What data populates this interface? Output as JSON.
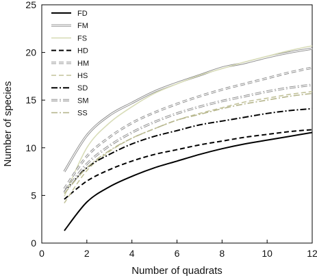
{
  "chart_data": {
    "type": "line",
    "title": "",
    "xlabel": "Number of quadrats",
    "ylabel": "Number of species",
    "xlim": [
      0,
      12
    ],
    "ylim": [
      0,
      25
    ],
    "xticks": [
      0,
      2,
      4,
      6,
      8,
      10,
      12
    ],
    "yticks": [
      0,
      5,
      10,
      15,
      20,
      25
    ],
    "grid": false,
    "legend_position": "top-left",
    "x": [
      1,
      2,
      3,
      4,
      5,
      6,
      7,
      8,
      9,
      10,
      11,
      12
    ],
    "series": [
      {
        "name": "FD",
        "values": [
          1.3,
          4.3,
          5.9,
          7.0,
          7.9,
          8.6,
          9.3,
          9.9,
          10.4,
          10.8,
          11.2,
          11.6
        ],
        "color": "#000000",
        "style": "solid"
      },
      {
        "name": "FM",
        "values": [
          7.5,
          11.3,
          13.4,
          14.7,
          15.9,
          16.8,
          17.6,
          18.4,
          18.9,
          19.5,
          20.0,
          20.4
        ],
        "color": "#8a8a8a",
        "style": "double"
      },
      {
        "name": "FS",
        "values": [
          4.9,
          10.0,
          12.6,
          14.3,
          15.7,
          16.7,
          17.6,
          18.3,
          19.0,
          19.6,
          20.2,
          20.7
        ],
        "color": "#d8dcb8",
        "style": "solid"
      },
      {
        "name": "HD",
        "values": [
          4.6,
          6.5,
          7.7,
          8.6,
          9.3,
          9.8,
          10.3,
          10.7,
          11.1,
          11.4,
          11.7,
          11.9
        ],
        "color": "#000000",
        "style": "dashed"
      },
      {
        "name": "HM",
        "values": [
          5.7,
          9.1,
          11.1,
          12.6,
          13.7,
          14.6,
          15.4,
          16.1,
          16.7,
          17.3,
          17.9,
          18.4
        ],
        "color": "#8a8a8a",
        "style": "double-dashed"
      },
      {
        "name": "HS",
        "values": [
          4.2,
          7.6,
          9.6,
          11.0,
          12.0,
          12.9,
          13.6,
          14.2,
          14.8,
          15.2,
          15.6,
          15.9
        ],
        "color": "#c2c29a",
        "style": "dashed"
      },
      {
        "name": "SD",
        "values": [
          5.4,
          7.9,
          9.3,
          10.4,
          11.2,
          11.8,
          12.4,
          12.8,
          13.2,
          13.6,
          13.9,
          14.1
        ],
        "color": "#000000",
        "style": "dashdot"
      },
      {
        "name": "SM",
        "values": [
          5.3,
          8.3,
          10.2,
          11.6,
          12.7,
          13.6,
          14.3,
          14.9,
          15.4,
          15.9,
          16.3,
          16.6
        ],
        "color": "#8a8a8a",
        "style": "double-dashdot"
      },
      {
        "name": "SS",
        "values": [
          5.2,
          7.9,
          9.7,
          11.0,
          12.0,
          12.9,
          13.5,
          14.1,
          14.6,
          15.0,
          15.4,
          15.7
        ],
        "color": "#b5b58c",
        "style": "dashdot"
      }
    ]
  }
}
